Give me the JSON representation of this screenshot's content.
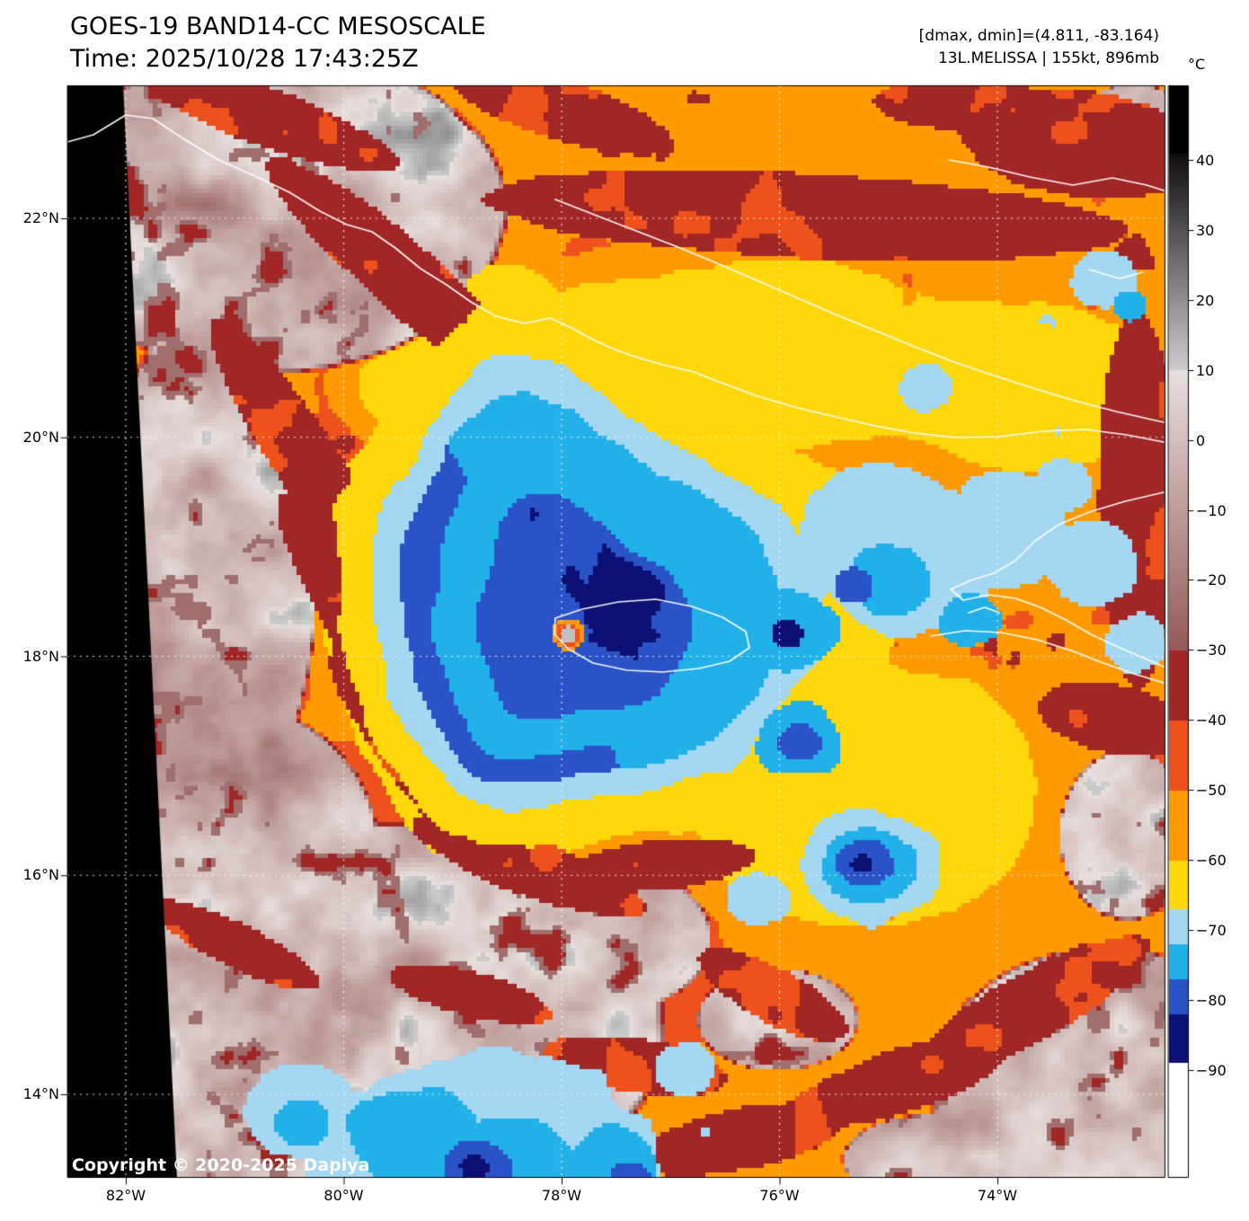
{
  "header": {
    "title_line1": "GOES-19 BAND14-CC MESOSCALE",
    "title_line2": "Time: 2025/10/28 17:43:25Z",
    "info_line1": "[dmax, dmin]=(4.811, -83.164)",
    "info_line2": "13L.MELISSA | 155kt, 896mb"
  },
  "map": {
    "copyright": "Copyright © 2020-2025 Dapiya",
    "lat_ticks": [
      {
        "label": "22°N",
        "lat": 22
      },
      {
        "label": "20°N",
        "lat": 20
      },
      {
        "label": "18°N",
        "lat": 18
      },
      {
        "label": "16°N",
        "lat": 16
      },
      {
        "label": "14°N",
        "lat": 14
      }
    ],
    "lon_ticks": [
      {
        "label": "82°W",
        "lon": -82
      },
      {
        "label": "80°W",
        "lon": -80
      },
      {
        "label": "78°W",
        "lon": -78
      },
      {
        "label": "76°W",
        "lon": -76
      },
      {
        "label": "74°W",
        "lon": -74
      }
    ]
  },
  "colorbar": {
    "unit": "°C",
    "ticks": [
      {
        "label": "40",
        "temp": 40
      },
      {
        "label": "30",
        "temp": 30
      },
      {
        "label": "20",
        "temp": 20
      },
      {
        "label": "10",
        "temp": 10
      },
      {
        "label": "0",
        "temp": 0
      },
      {
        "label": "−10",
        "temp": -10
      },
      {
        "label": "−20",
        "temp": -20
      },
      {
        "label": "−30",
        "temp": -30
      },
      {
        "label": "−40",
        "temp": -40
      },
      {
        "label": "−50",
        "temp": -50
      },
      {
        "label": "−60",
        "temp": -60
      },
      {
        "label": "−70",
        "temp": -70
      },
      {
        "label": "−80",
        "temp": -80
      },
      {
        "label": "−90",
        "temp": -90
      }
    ],
    "palette": {
      "black": "#000000",
      "gray_dark": "#0e0e0e",
      "gray_light": "#cecece",
      "pink_light": "#e8e0de",
      "pink_dark": "#945a58",
      "dark_red": "#a12626",
      "orange_red": "#ed511c",
      "orange": "#ff9a00",
      "yellow": "#ffd70a",
      "light_blue": "#a3d7f2",
      "cyan": "#21b0e8",
      "blue": "#2b53c8",
      "navy": "#0c1173",
      "white": "#ffffff"
    },
    "band_edges_c": {
      "black_above": 41,
      "gray_to": 10,
      "pink_to": -30,
      "dark_red_to": -40,
      "orange_red_to": -50,
      "orange_to": -60,
      "yellow_to": -67,
      "light_blue_to": -72,
      "cyan_to": -77,
      "blue_to": -82,
      "navy_to": -89
    }
  },
  "chart_data": {
    "type": "heatmap",
    "title": "GOES-19 BAND14-CC MESOSCALE",
    "subtitle": "Time: 2025/10/28 17:43:25Z",
    "satellite": "GOES-19",
    "band": "BAND14-CC",
    "sector": "MESOSCALE",
    "time_utc": "2025/10/28 17:43:25Z",
    "dmax_c": 4.811,
    "dmin_c": -83.164,
    "storm": {
      "designation": "13L",
      "name": "MELISSA",
      "max_wind_kt": 155,
      "min_pressure_mb": 896,
      "eye_approx_lon": -77.95,
      "eye_approx_lat": 18.2
    },
    "x_axis": {
      "label": "longitude",
      "ticks_deg": [
        -82,
        -80,
        -78,
        -76,
        -74
      ],
      "tick_labels": [
        "82°W",
        "80°W",
        "78°W",
        "76°W",
        "74°W"
      ],
      "range_deg": [
        -82.5,
        -72.5
      ]
    },
    "y_axis": {
      "label": "latitude",
      "ticks_deg": [
        22,
        20,
        18,
        16,
        14
      ],
      "tick_labels": [
        "22°N",
        "20°N",
        "18°N",
        "16°N",
        "14°N"
      ],
      "range_deg": [
        13.2,
        23.2
      ]
    },
    "colorbar": {
      "unit": "°C",
      "tick_values": [
        40,
        30,
        20,
        10,
        0,
        -10,
        -20,
        -30,
        -40,
        -50,
        -60,
        -70,
        -80,
        -90
      ],
      "orientation": "vertical",
      "position": "right"
    },
    "grid": true,
    "legend_position": "right"
  }
}
